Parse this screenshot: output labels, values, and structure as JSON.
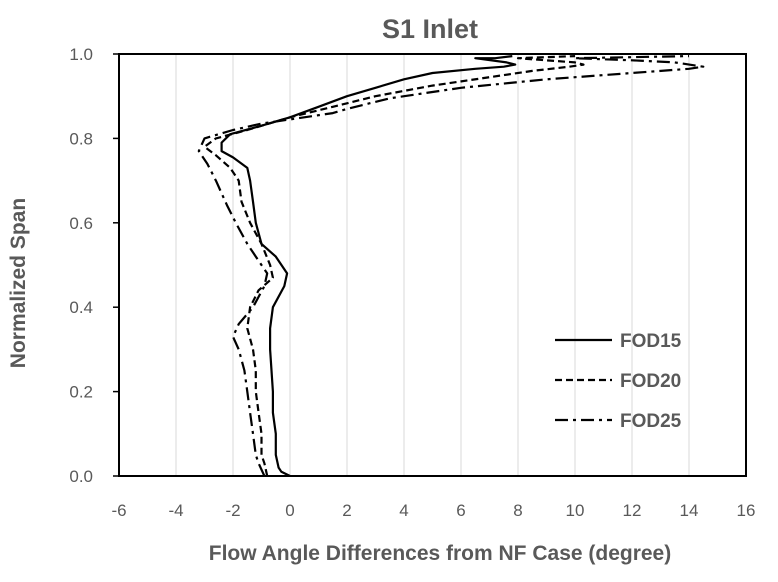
{
  "chart_data": {
    "type": "line",
    "title": "S1 Inlet",
    "xlabel": "Flow Angle Differences from NF Case (degree)",
    "ylabel": "Normalized Span",
    "xlim": [
      -6,
      16
    ],
    "ylim": [
      0,
      1
    ],
    "xticks": [
      "-6",
      "-4",
      "-2",
      "0",
      "2",
      "4",
      "6",
      "8",
      "10",
      "12",
      "14",
      "16"
    ],
    "yticks": [
      "0.0",
      "0.2",
      "0.4",
      "0.6",
      "0.8",
      "1.0"
    ],
    "grid": "vertical",
    "legend_position": "bottom-right",
    "series": [
      {
        "name": "FOD15",
        "style": "solid",
        "points": [
          [
            0.0,
            0.0
          ],
          [
            -0.3,
            0.01
          ],
          [
            -0.4,
            0.02
          ],
          [
            -0.5,
            0.05
          ],
          [
            -0.5,
            0.1
          ],
          [
            -0.6,
            0.15
          ],
          [
            -0.6,
            0.2
          ],
          [
            -0.65,
            0.25
          ],
          [
            -0.7,
            0.3
          ],
          [
            -0.7,
            0.35
          ],
          [
            -0.6,
            0.4
          ],
          [
            -0.2,
            0.45
          ],
          [
            -0.1,
            0.48
          ],
          [
            -0.5,
            0.52
          ],
          [
            -1.0,
            0.55
          ],
          [
            -1.2,
            0.6
          ],
          [
            -1.3,
            0.65
          ],
          [
            -1.4,
            0.7
          ],
          [
            -1.5,
            0.73
          ],
          [
            -2.0,
            0.755
          ],
          [
            -2.4,
            0.77
          ],
          [
            -2.4,
            0.79
          ],
          [
            -2.1,
            0.81
          ],
          [
            -1.0,
            0.83
          ],
          [
            0.0,
            0.85
          ],
          [
            1.0,
            0.875
          ],
          [
            2.0,
            0.9
          ],
          [
            3.0,
            0.92
          ],
          [
            4.0,
            0.94
          ],
          [
            5.0,
            0.955
          ],
          [
            6.5,
            0.965
          ],
          [
            7.5,
            0.97
          ],
          [
            7.9,
            0.975
          ],
          [
            7.6,
            0.98
          ],
          [
            6.5,
            0.99
          ],
          [
            7.2,
            0.99
          ],
          [
            7.8,
            0.995
          ]
        ]
      },
      {
        "name": "FOD20",
        "style": "dashed",
        "points": [
          [
            -0.8,
            0.0
          ],
          [
            -0.9,
            0.03
          ],
          [
            -1.0,
            0.05
          ],
          [
            -1.0,
            0.1
          ],
          [
            -1.1,
            0.15
          ],
          [
            -1.2,
            0.2
          ],
          [
            -1.2,
            0.25
          ],
          [
            -1.3,
            0.3
          ],
          [
            -1.5,
            0.35
          ],
          [
            -1.4,
            0.4
          ],
          [
            -1.1,
            0.44
          ],
          [
            -0.6,
            0.47
          ],
          [
            -0.7,
            0.5
          ],
          [
            -1.0,
            0.55
          ],
          [
            -1.4,
            0.6
          ],
          [
            -1.7,
            0.65
          ],
          [
            -1.8,
            0.7
          ],
          [
            -2.1,
            0.73
          ],
          [
            -2.6,
            0.76
          ],
          [
            -3.0,
            0.78
          ],
          [
            -2.6,
            0.8
          ],
          [
            -1.5,
            0.82
          ],
          [
            0.0,
            0.85
          ],
          [
            1.5,
            0.875
          ],
          [
            3.0,
            0.9
          ],
          [
            5.0,
            0.925
          ],
          [
            7.0,
            0.945
          ],
          [
            8.5,
            0.96
          ],
          [
            9.8,
            0.97
          ],
          [
            10.3,
            0.975
          ],
          [
            10.0,
            0.98
          ],
          [
            9.0,
            0.985
          ],
          [
            8.0,
            0.99
          ],
          [
            10.0,
            0.995
          ]
        ]
      },
      {
        "name": "FOD25",
        "style": "dashdot",
        "points": [
          [
            -0.9,
            0.0
          ],
          [
            -1.1,
            0.03
          ],
          [
            -1.2,
            0.05
          ],
          [
            -1.3,
            0.1
          ],
          [
            -1.4,
            0.15
          ],
          [
            -1.5,
            0.2
          ],
          [
            -1.6,
            0.25
          ],
          [
            -1.8,
            0.3
          ],
          [
            -2.0,
            0.33
          ],
          [
            -1.8,
            0.36
          ],
          [
            -1.3,
            0.4
          ],
          [
            -0.9,
            0.45
          ],
          [
            -0.8,
            0.48
          ],
          [
            -1.2,
            0.52
          ],
          [
            -1.5,
            0.55
          ],
          [
            -1.9,
            0.6
          ],
          [
            -2.2,
            0.64
          ],
          [
            -2.4,
            0.67
          ],
          [
            -2.6,
            0.7
          ],
          [
            -2.9,
            0.74
          ],
          [
            -3.2,
            0.77
          ],
          [
            -3.0,
            0.8
          ],
          [
            -2.0,
            0.82
          ],
          [
            -1.0,
            0.835
          ],
          [
            0.0,
            0.845
          ],
          [
            1.5,
            0.86
          ],
          [
            2.0,
            0.87
          ],
          [
            3.5,
            0.895
          ],
          [
            6.0,
            0.92
          ],
          [
            9.0,
            0.94
          ],
          [
            12.0,
            0.955
          ],
          [
            14.0,
            0.965
          ],
          [
            14.5,
            0.97
          ],
          [
            13.5,
            0.98
          ],
          [
            12.0,
            0.985
          ],
          [
            10.0,
            0.99
          ],
          [
            14.0,
            0.995
          ]
        ]
      }
    ]
  }
}
